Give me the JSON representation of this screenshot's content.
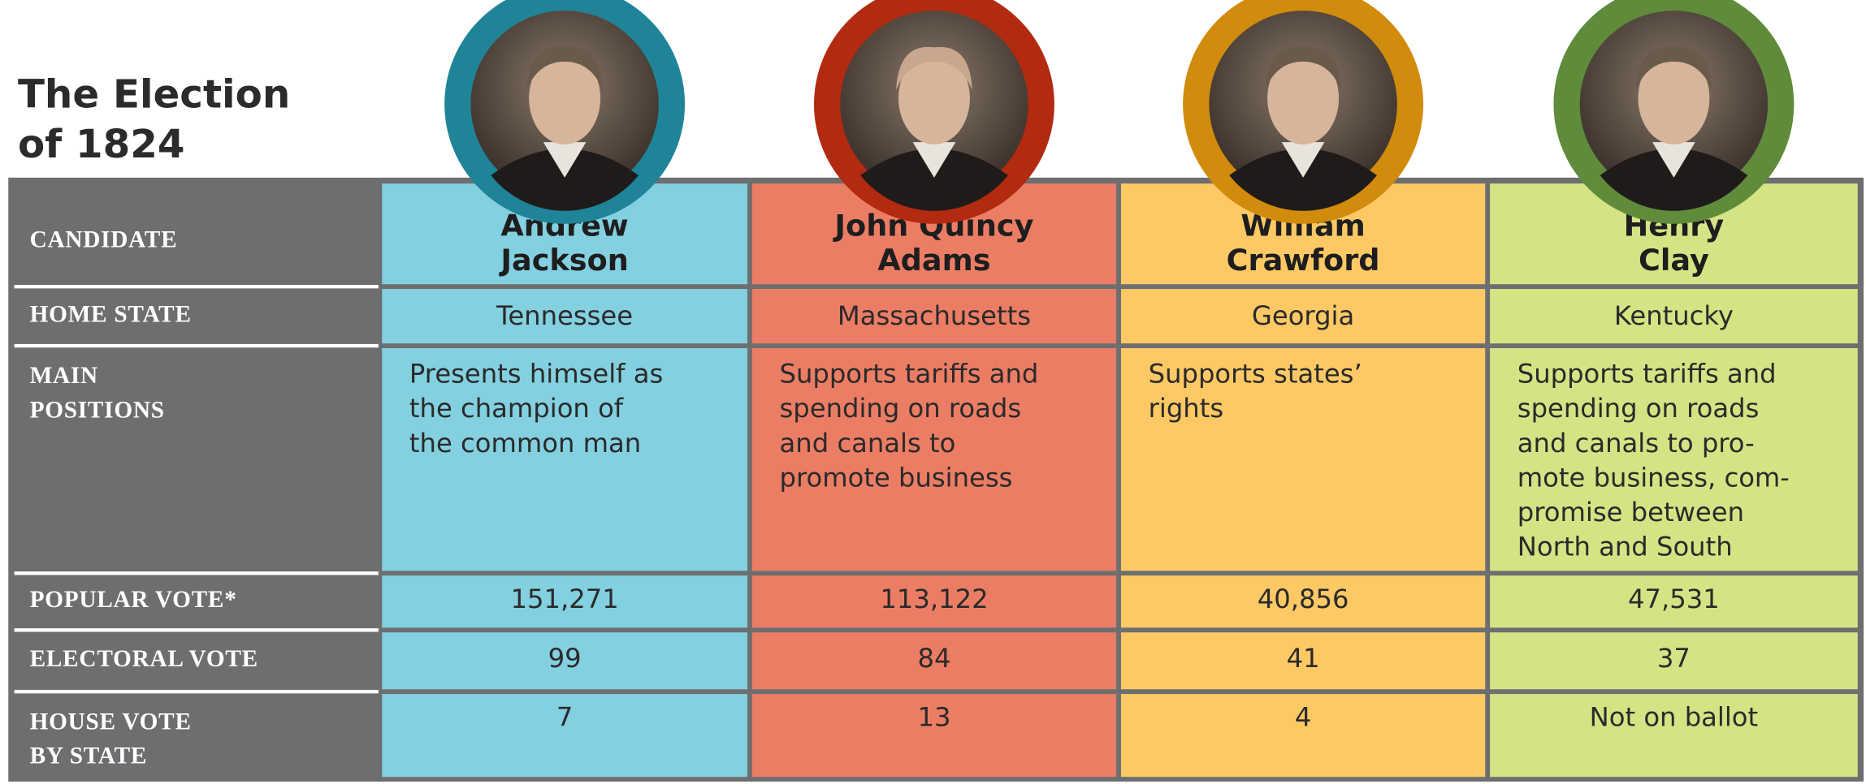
{
  "title": [
    "The Election",
    "of 1824"
  ],
  "table": {
    "row_labels": [
      [
        "CANDIDATE"
      ],
      [
        "HOME STATE"
      ],
      [
        "MAIN",
        "POSITIONS"
      ],
      [
        "POPULAR VOTE*"
      ],
      [
        "ELECTORAL VOTE"
      ],
      [
        "HOUSE VOTE",
        "BY STATE"
      ]
    ],
    "columns": [
      {
        "candidate": [
          "Andrew",
          "Jackson"
        ],
        "home_state": "Tennessee",
        "main_positions": [
          "Presents himself as",
          "the champion of",
          "the common man"
        ],
        "popular_vote": "151,271",
        "electoral_vote": "99",
        "house_vote": "7"
      },
      {
        "candidate": [
          "John Quincy",
          "Adams"
        ],
        "home_state": "Massachusetts",
        "main_positions": [
          "Supports tariffs and",
          "spending on roads",
          "and canals to",
          "promote business"
        ],
        "popular_vote": "113,122",
        "electoral_vote": "84",
        "house_vote": "13"
      },
      {
        "candidate": [
          "William",
          "Crawford"
        ],
        "home_state": "Georgia",
        "main_positions": [
          "Supports states’",
          "rights"
        ],
        "popular_vote": "40,856",
        "electoral_vote": "41",
        "house_vote": "4"
      },
      {
        "candidate": [
          "Henry",
          "Clay"
        ],
        "home_state": "Kentucky",
        "main_positions": [
          "Supports tariffs and",
          "spending on roads",
          "and canals to pro-",
          "mote business, com-",
          "promise between",
          "North and South"
        ],
        "popular_vote": "47,531",
        "electoral_vote": "37",
        "house_vote": "Not on ballot"
      }
    ]
  }
}
